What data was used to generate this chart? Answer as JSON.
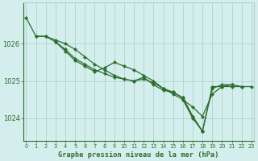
{
  "bg_color": "#d4eeed",
  "grid_color": "#a8d5c8",
  "line_color": "#2d6e2d",
  "marker_color": "#2d6e2d",
  "xlabel": "Graphe pression niveau de la mer (hPa)",
  "xlabel_color": "#2d6e2d",
  "tick_color": "#2d6e2d",
  "ylim": [
    1023.4,
    1027.1
  ],
  "xlim": [
    -0.3,
    23.3
  ],
  "yticks": [
    1024,
    1025,
    1026
  ],
  "xticks": [
    0,
    1,
    2,
    3,
    4,
    5,
    6,
    7,
    8,
    9,
    10,
    11,
    12,
    13,
    14,
    15,
    16,
    17,
    18,
    19,
    20,
    21,
    22,
    23
  ],
  "series": [
    [
      1026.7,
      1026.2,
      1026.2,
      1026.1,
      1026.0,
      1025.85,
      1025.65,
      1025.45,
      1025.3,
      1025.15,
      1025.05,
      1025.0,
      1025.1,
      1024.9,
      1024.75,
      1024.7,
      1024.55,
      1024.05,
      1023.65,
      1024.85,
      1024.85,
      1024.85,
      1024.85,
      null
    ],
    [
      null,
      1026.2,
      1026.2,
      1026.05,
      1025.85,
      1025.6,
      1025.45,
      1025.3,
      1025.2,
      1025.1,
      1025.05,
      1025.0,
      1025.05,
      1024.95,
      1024.8,
      1024.7,
      1024.55,
      1024.05,
      1023.65,
      null,
      null,
      null,
      null,
      null
    ],
    [
      null,
      null,
      null,
      1026.05,
      1025.8,
      1025.55,
      1025.4,
      1025.25,
      1025.35,
      1025.5,
      1025.4,
      1025.3,
      1025.15,
      1025.0,
      1024.8,
      1024.65,
      1024.5,
      1024.0,
      1023.65,
      1024.8,
      1024.9,
      1024.9,
      null,
      null
    ],
    [
      null,
      null,
      null,
      null,
      null,
      null,
      null,
      null,
      null,
      null,
      null,
      null,
      null,
      null,
      null,
      null,
      1024.5,
      1024.3,
      1024.05,
      1024.65,
      1024.85,
      1024.9,
      1024.85,
      1024.85
    ]
  ]
}
